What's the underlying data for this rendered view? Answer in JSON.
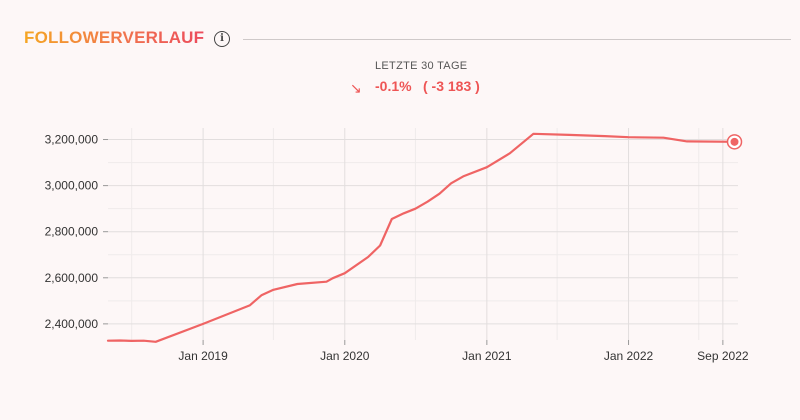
{
  "header": {
    "title": "FOLLOWERVERLAUF",
    "info_icon": "info-icon",
    "period_label": "LETZTE 30 TAGE",
    "trend_icon": "arrow-down-right-icon",
    "change_percent": "-0.1%",
    "change_absolute": "( -3 183 )"
  },
  "colors": {
    "line": "#ef6464",
    "accent": "#ee5555",
    "grid": "#e2dede",
    "title_gradient": [
      "#f5a623",
      "#ec4a5b"
    ]
  },
  "chart_data": {
    "type": "line",
    "xlabel": "",
    "ylabel": "",
    "x_ticks": [
      "Jan 2019",
      "Jan 2020",
      "Jan 2021",
      "Jan 2022",
      "Sep 2022"
    ],
    "x_tick_dates": [
      "2019-01-01",
      "2020-01-01",
      "2021-01-01",
      "2022-01-01",
      "2022-09-01"
    ],
    "y_ticks": [
      2400000,
      2600000,
      2800000,
      3000000,
      3200000
    ],
    "y_tick_labels": [
      "2,400,000",
      "2,600,000",
      "2,800,000",
      "3,000,000",
      "3,200,000"
    ],
    "xlim": [
      "2018-05-01",
      "2022-10-10"
    ],
    "ylim": [
      2330000,
      3250000
    ],
    "grid": true,
    "series": [
      {
        "points": [
          {
            "x": "2018-05-01",
            "y": 2327000
          },
          {
            "x": "2018-06-01",
            "y": 2328000
          },
          {
            "x": "2018-07-01",
            "y": 2326000
          },
          {
            "x": "2018-08-01",
            "y": 2327000
          },
          {
            "x": "2018-09-01",
            "y": 2322000
          },
          {
            "x": "2019-01-01",
            "y": 2400000
          },
          {
            "x": "2019-05-01",
            "y": 2480000
          },
          {
            "x": "2019-06-01",
            "y": 2525000
          },
          {
            "x": "2019-07-01",
            "y": 2548000
          },
          {
            "x": "2019-09-01",
            "y": 2573000
          },
          {
            "x": "2019-11-15",
            "y": 2583000
          },
          {
            "x": "2019-12-01",
            "y": 2598000
          },
          {
            "x": "2020-01-01",
            "y": 2620000
          },
          {
            "x": "2020-03-01",
            "y": 2690000
          },
          {
            "x": "2020-04-01",
            "y": 2740000
          },
          {
            "x": "2020-05-01",
            "y": 2855000
          },
          {
            "x": "2020-06-01",
            "y": 2880000
          },
          {
            "x": "2020-07-01",
            "y": 2900000
          },
          {
            "x": "2020-08-01",
            "y": 2930000
          },
          {
            "x": "2020-09-01",
            "y": 2965000
          },
          {
            "x": "2020-10-01",
            "y": 3010000
          },
          {
            "x": "2020-11-01",
            "y": 3040000
          },
          {
            "x": "2021-01-01",
            "y": 3080000
          },
          {
            "x": "2021-03-01",
            "y": 3140000
          },
          {
            "x": "2021-05-01",
            "y": 3225000
          },
          {
            "x": "2021-08-01",
            "y": 3220000
          },
          {
            "x": "2021-11-01",
            "y": 3215000
          },
          {
            "x": "2022-01-01",
            "y": 3210000
          },
          {
            "x": "2022-04-01",
            "y": 3208000
          },
          {
            "x": "2022-06-01",
            "y": 3192000
          },
          {
            "x": "2022-10-01",
            "y": 3190000
          }
        ]
      }
    ],
    "last_point_marker": true
  }
}
